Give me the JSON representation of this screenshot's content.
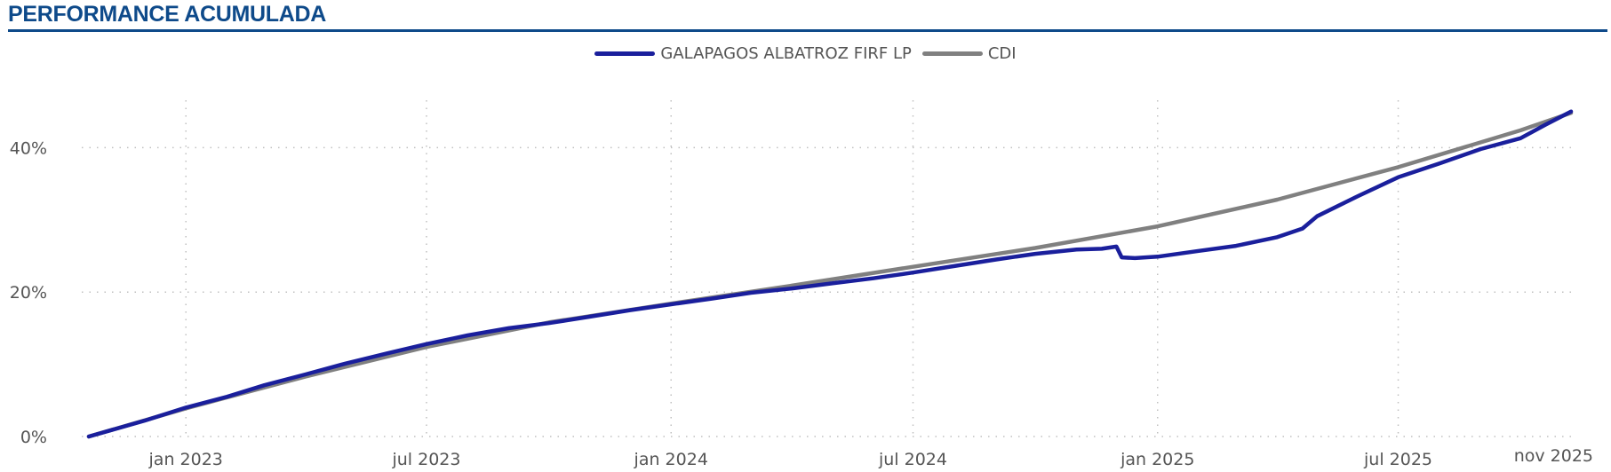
{
  "header": {
    "title": "PERFORMANCE ACUMULADA"
  },
  "colors": {
    "title": "#0e4a8a",
    "fund": "#1a1f9c",
    "cdi": "#808080",
    "grid": "#c0c0c0"
  },
  "chart_data": {
    "type": "line",
    "title": "PERFORMANCE ACUMULADA",
    "xlabel": "",
    "ylabel": "",
    "x_ticks": [
      {
        "label": "jan 2023",
        "date": "2023-01-01"
      },
      {
        "label": "jul 2023",
        "date": "2023-07-01"
      },
      {
        "label": "jan 2024",
        "date": "2024-01-01"
      },
      {
        "label": "jul 2024",
        "date": "2024-07-01"
      },
      {
        "label": "jan 2025",
        "date": "2025-01-01"
      },
      {
        "label": "jul 2025",
        "date": "2025-07-01"
      },
      {
        "label": "nov 2025",
        "date": "2025-11-01"
      }
    ],
    "y_ticks": [
      {
        "label": "0%",
        "value": 0
      },
      {
        "label": "20%",
        "value": 20
      },
      {
        "label": "40%",
        "value": 40
      }
    ],
    "xlim": [
      "2022-10-20",
      "2025-11-08"
    ],
    "ylim": [
      0,
      50
    ],
    "grid": true,
    "legend_position": "top-center",
    "series": [
      {
        "name": "GALAPAGOS ALBATROZ FIRF LP",
        "color": "#1a1f9c",
        "points": [
          [
            "2022-10-20",
            0.0
          ],
          [
            "2022-12-01",
            2.2
          ],
          [
            "2023-01-01",
            4.0
          ],
          [
            "2023-02-01",
            5.5
          ],
          [
            "2023-03-01",
            7.1
          ],
          [
            "2023-04-01",
            8.6
          ],
          [
            "2023-05-01",
            10.1
          ],
          [
            "2023-06-01",
            11.5
          ],
          [
            "2023-07-01",
            12.8
          ],
          [
            "2023-08-01",
            14.0
          ],
          [
            "2023-09-01",
            15.0
          ],
          [
            "2023-10-01",
            15.7
          ],
          [
            "2023-11-01",
            16.6
          ],
          [
            "2023-12-01",
            17.5
          ],
          [
            "2024-01-01",
            18.3
          ],
          [
            "2024-02-01",
            19.1
          ],
          [
            "2024-03-01",
            19.9
          ],
          [
            "2024-04-01",
            20.5
          ],
          [
            "2024-05-01",
            21.2
          ],
          [
            "2024-06-01",
            21.9
          ],
          [
            "2024-07-01",
            22.7
          ],
          [
            "2024-08-01",
            23.6
          ],
          [
            "2024-09-01",
            24.5
          ],
          [
            "2024-10-01",
            25.3
          ],
          [
            "2024-11-01",
            25.9
          ],
          [
            "2024-11-20",
            26.0
          ],
          [
            "2024-12-01",
            26.3
          ],
          [
            "2024-12-05",
            24.8
          ],
          [
            "2024-12-15",
            24.7
          ],
          [
            "2025-01-01",
            24.9
          ],
          [
            "2025-02-01",
            25.7
          ],
          [
            "2025-03-01",
            26.4
          ],
          [
            "2025-04-01",
            27.6
          ],
          [
            "2025-04-20",
            28.8
          ],
          [
            "2025-05-01",
            30.5
          ],
          [
            "2025-06-01",
            33.3
          ],
          [
            "2025-07-01",
            35.9
          ],
          [
            "2025-08-01",
            37.8
          ],
          [
            "2025-09-01",
            39.8
          ],
          [
            "2025-10-01",
            41.3
          ],
          [
            "2025-10-20",
            43.2
          ],
          [
            "2025-11-08",
            45.0
          ]
        ]
      },
      {
        "name": "CDI",
        "color": "#808080",
        "points": [
          [
            "2022-10-20",
            0.0
          ],
          [
            "2023-01-01",
            3.9
          ],
          [
            "2023-04-01",
            8.3
          ],
          [
            "2023-07-01",
            12.4
          ],
          [
            "2023-10-01",
            15.8
          ],
          [
            "2024-01-01",
            18.4
          ],
          [
            "2024-04-01",
            20.9
          ],
          [
            "2024-07-01",
            23.5
          ],
          [
            "2024-10-01",
            26.1
          ],
          [
            "2025-01-01",
            29.1
          ],
          [
            "2025-04-01",
            32.8
          ],
          [
            "2025-07-01",
            37.3
          ],
          [
            "2025-10-01",
            42.4
          ],
          [
            "2025-11-08",
            44.8
          ]
        ]
      }
    ]
  }
}
